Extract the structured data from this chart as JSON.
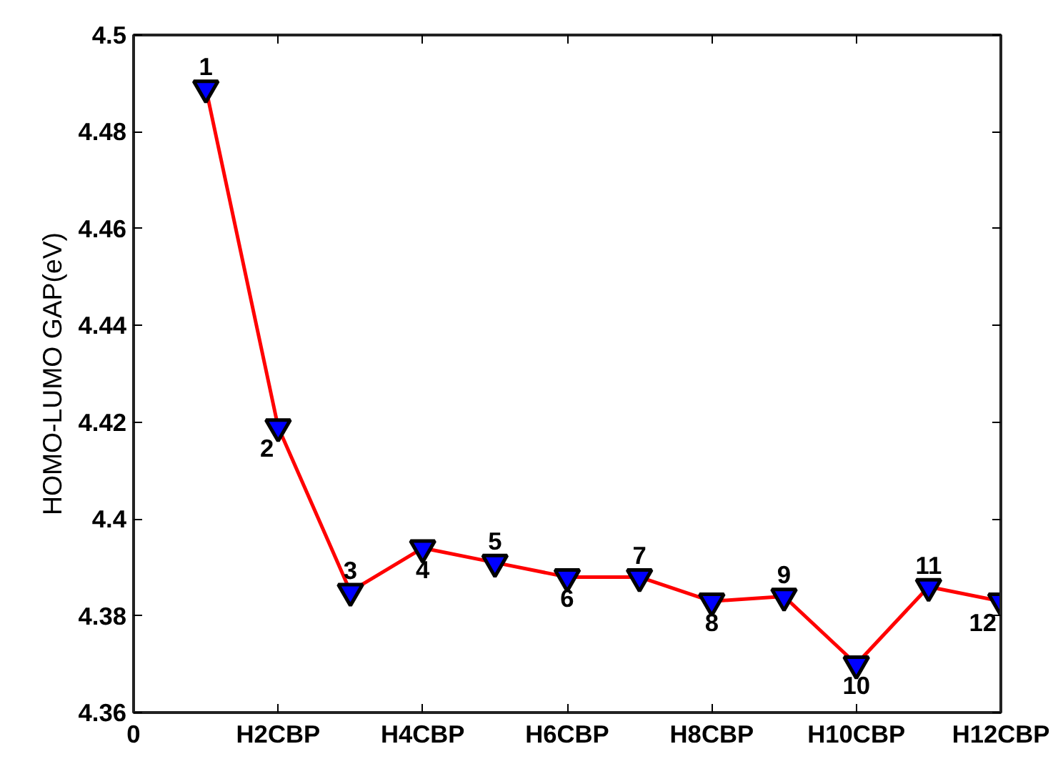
{
  "chart_data": {
    "type": "line",
    "ylabel": "HOMO-LUMO GAP(eV)",
    "categories": [
      "0",
      null,
      "H2CBP",
      null,
      "H4CBP",
      null,
      "H6CBP",
      null,
      "H8CBP",
      null,
      "H10CBP",
      null,
      "H12CBP"
    ],
    "series": [
      {
        "color": "#ff0000",
        "values": [
          null,
          4.489,
          4.419,
          4.385,
          4.394,
          4.391,
          4.388,
          4.388,
          4.383,
          4.384,
          4.37,
          4.386,
          4.383
        ]
      }
    ],
    "ylim": [
      4.36,
      4.5
    ],
    "yticks": [
      4.36,
      4.38,
      4.4,
      4.42,
      4.44,
      4.46,
      4.48,
      4.5
    ],
    "marker": "triangle",
    "line_style": "solid",
    "annotations": [
      "1",
      "2",
      "3",
      "4",
      "5",
      "6",
      "7",
      "8",
      "9",
      "10",
      "11",
      "12"
    ]
  }
}
